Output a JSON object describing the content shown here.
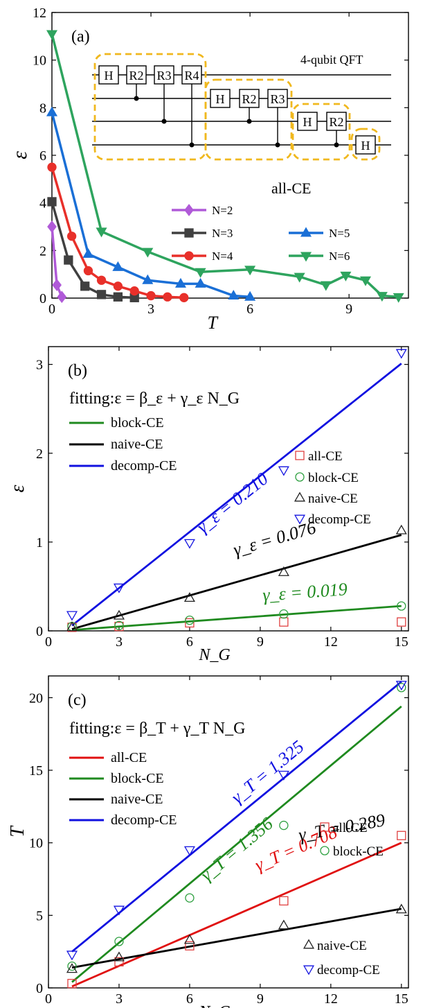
{
  "chart_data": [
    {
      "type": "line",
      "panel_label": "(a)",
      "xlabel": "T",
      "ylabel": "ε",
      "xlim": [
        0,
        10.8
      ],
      "ylim": [
        0,
        12
      ],
      "xticks": [
        0,
        3,
        6,
        9
      ],
      "yticks": [
        0,
        2,
        4,
        6,
        8,
        10,
        12
      ],
      "annotation": "all-CE",
      "legend_position": "bottom-center",
      "series": [
        {
          "name": "N=2",
          "color": "#b05ad8",
          "marker": "diamond",
          "x": [
            0,
            0.15,
            0.3
          ],
          "y": [
            3.0,
            0.55,
            0.05
          ]
        },
        {
          "name": "N=3",
          "color": "#404040",
          "marker": "square",
          "x": [
            0,
            0.5,
            1.0,
            1.5,
            2.0,
            2.5
          ],
          "y": [
            4.05,
            1.6,
            0.5,
            0.15,
            0.05,
            0.02
          ]
        },
        {
          "name": "N=4",
          "color": "#e8302a",
          "marker": "circle",
          "x": [
            0,
            0.6,
            1.1,
            1.5,
            2.0,
            2.5,
            3.0,
            3.5,
            4.0
          ],
          "y": [
            5.5,
            2.6,
            1.15,
            0.75,
            0.5,
            0.3,
            0.1,
            0.05,
            0.02
          ]
        },
        {
          "name": "N=5",
          "color": "#1a6fd6",
          "marker": "triangle-up",
          "x": [
            0,
            1.1,
            2.0,
            2.9,
            3.9,
            4.5,
            5.5,
            6.0
          ],
          "y": [
            7.8,
            1.85,
            1.3,
            0.75,
            0.6,
            0.6,
            0.1,
            0.05
          ]
        },
        {
          "name": "N=6",
          "color": "#2ea45e",
          "marker": "triangle-down",
          "x": [
            0,
            1.5,
            2.9,
            4.5,
            6.0,
            7.5,
            8.3,
            8.9,
            9.5,
            10.0,
            10.5
          ],
          "y": [
            11.1,
            2.8,
            1.95,
            1.1,
            1.2,
            0.9,
            0.55,
            0.95,
            0.75,
            0.1,
            0.05
          ]
        }
      ],
      "inset": {
        "title": "4-qubit QFT",
        "block1": [
          "H",
          "R2",
          "R3",
          "R4"
        ],
        "block2": [
          "H",
          "R2",
          "R3"
        ],
        "block3": [
          "H",
          "R2"
        ],
        "block4": [
          "H"
        ]
      }
    },
    {
      "type": "scatter",
      "panel_label": "(b)",
      "xlabel": "N_G",
      "ylabel": "ε",
      "xlim": [
        0,
        15.3
      ],
      "ylim": [
        0,
        3.2
      ],
      "xticks": [
        0,
        3,
        6,
        9,
        12,
        15
      ],
      "yticks": [
        0,
        1,
        2,
        3
      ],
      "fit_title": "fitting:ε = β_ε + γ_ε N_G",
      "fit_lines": [
        {
          "name": "block-CE",
          "color": "#1f8a1f",
          "x": [
            1,
            15
          ],
          "y": [
            0.01,
            0.28
          ],
          "label": "γ_ε = 0.019"
        },
        {
          "name": "naive-CE",
          "color": "#000000",
          "x": [
            1,
            15
          ],
          "y": [
            0.02,
            1.08
          ],
          "label": "γ_ε = 0.076"
        },
        {
          "name": "decomp-CE",
          "color": "#1010e0",
          "x": [
            1,
            15
          ],
          "y": [
            0.06,
            3.01
          ],
          "label": "γ_ε = 0.210"
        }
      ],
      "series": [
        {
          "name": "all-CE",
          "color": "#e04040",
          "marker": "square",
          "x": [
            1,
            3,
            6,
            10,
            15
          ],
          "y": [
            0.04,
            0.05,
            0.09,
            0.1,
            0.1
          ]
        },
        {
          "name": "block-CE",
          "color": "#2ea040",
          "marker": "circle",
          "x": [
            1,
            3,
            6,
            10,
            15
          ],
          "y": [
            0.05,
            0.06,
            0.12,
            0.19,
            0.28
          ]
        },
        {
          "name": "naive-CE",
          "color": "#202020",
          "marker": "triangle-up",
          "x": [
            1,
            3,
            6,
            10,
            15
          ],
          "y": [
            0.04,
            0.17,
            0.37,
            0.66,
            1.13
          ]
        },
        {
          "name": "decomp-CE",
          "color": "#1515e0",
          "marker": "triangle-down",
          "x": [
            1,
            3,
            6,
            10,
            15
          ],
          "y": [
            0.18,
            0.49,
            0.99,
            1.81,
            3.13
          ]
        }
      ]
    },
    {
      "type": "scatter",
      "panel_label": "(c)",
      "xlabel": "N_G",
      "ylabel": "T",
      "xlim": [
        0,
        15.3
      ],
      "ylim": [
        0,
        21.5
      ],
      "xticks": [
        0,
        3,
        6,
        9,
        12,
        15
      ],
      "yticks": [
        0,
        5,
        10,
        15,
        20
      ],
      "fit_title": "fitting:ε = β_T + γ_T N_G",
      "fit_lines": [
        {
          "name": "all-CE",
          "color": "#e01010",
          "x": [
            1,
            15
          ],
          "y": [
            0.1,
            10.0
          ],
          "label": "γ_T = 0.708"
        },
        {
          "name": "block-CE",
          "color": "#1f8a1f",
          "x": [
            1,
            15
          ],
          "y": [
            0.4,
            19.4
          ],
          "label": "γ_T = 1.356"
        },
        {
          "name": "naive-CE",
          "color": "#000000",
          "x": [
            1,
            15
          ],
          "y": [
            1.4,
            5.45
          ],
          "label": "γ_T = 0.289"
        },
        {
          "name": "decomp-CE",
          "color": "#1010e0",
          "x": [
            1,
            15
          ],
          "y": [
            2.5,
            21.1
          ],
          "label": "γ_T = 1.325"
        }
      ],
      "series": [
        {
          "name": "all-CE",
          "color": "#e04040",
          "marker": "square",
          "x": [
            1,
            3,
            6,
            10,
            15
          ],
          "y": [
            0.3,
            1.8,
            2.9,
            6.0,
            10.5
          ]
        },
        {
          "name": "block-CE",
          "color": "#2ea040",
          "marker": "circle",
          "x": [
            1,
            3,
            6,
            10,
            15
          ],
          "y": [
            1.5,
            3.2,
            6.2,
            11.2,
            20.7
          ]
        },
        {
          "name": "naive-CE",
          "color": "#202020",
          "marker": "triangle-up",
          "x": [
            1,
            3,
            6,
            10,
            15
          ],
          "y": [
            1.3,
            2.1,
            3.3,
            4.3,
            5.4
          ]
        },
        {
          "name": "decomp-CE",
          "color": "#1515e0",
          "marker": "triangle-down",
          "x": [
            1,
            3,
            6,
            10,
            15
          ],
          "y": [
            2.3,
            5.4,
            9.5,
            14.7,
            20.9
          ]
        }
      ]
    }
  ]
}
